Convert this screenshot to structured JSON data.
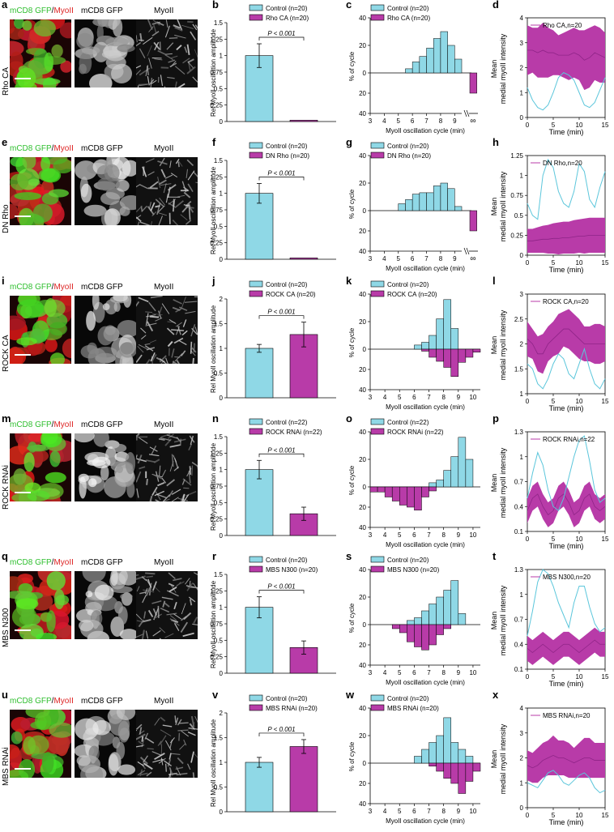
{
  "image_titles": {
    "merge_green": "mCD8 GFP",
    "merge_sep": "/",
    "merge_red": "MyoII",
    "gfp": "mCD8 GFP",
    "myo": "MyoII"
  },
  "colors": {
    "control": "#8FD8E6",
    "control_line": "#5BC6DB",
    "treated": "#B83BA8",
    "treated_line": "#8E2487"
  },
  "axis_labels": {
    "bar_y": "Rel MyoII oscillation amplitude",
    "hist_y": "% of cycle",
    "hist_x": "MyoII oscillation cycle (min)",
    "trace_y1": "Mean",
    "trace_y2": "medial myoII intensity",
    "trace_x": "Time (min)",
    "pval": "P < 0.001",
    "inf_symbol": "∞"
  },
  "rows": [
    {
      "row_label": "Rho CA",
      "letters": [
        "a",
        "b",
        "c",
        "d"
      ],
      "treat": "Rho CA",
      "n_ctrl": "20",
      "n_treat": "20",
      "legend_ctrl": "Control (n=20)",
      "legend_treat": "Rho CA (n=20)",
      "trace_legend": "Rho CA,n=20"
    },
    {
      "row_label": "DN Rho",
      "letters": [
        "e",
        "f",
        "g",
        "h"
      ],
      "treat": "DN Rho",
      "n_ctrl": "20",
      "n_treat": "20",
      "legend_ctrl": "Control (n=20)",
      "legend_treat": "DN Rho (n=20)",
      "trace_legend": "DN Rho,n=20"
    },
    {
      "row_label": "ROCK CA",
      "letters": [
        "i",
        "j",
        "k",
        "l"
      ],
      "treat": "ROCK CA",
      "n_ctrl": "20",
      "n_treat": "20",
      "legend_ctrl": "Control (n=20)",
      "legend_treat": "ROCK CA (n=20)",
      "trace_legend": "ROCK CA,n=20"
    },
    {
      "row_label": "ROCK RNAi",
      "letters": [
        "m",
        "n",
        "o",
        "p"
      ],
      "treat": "ROCK RNAi",
      "n_ctrl": "22",
      "n_treat": "22",
      "legend_ctrl": "Control (n=22)",
      "legend_treat": "ROCK RNAi (n=22)",
      "trace_legend": "ROCK RNAi,n=22"
    },
    {
      "row_label": "MBS N300",
      "letters": [
        "q",
        "r",
        "s",
        "t"
      ],
      "treat": "MBS N300",
      "n_ctrl": "20",
      "n_treat": "20",
      "legend_ctrl": "Control (n=20)",
      "legend_treat": "MBS N300 (n=20)",
      "trace_legend": "MBS N300,n=20"
    },
    {
      "row_label": "MBS RNAi",
      "letters": [
        "u",
        "v",
        "w",
        "x"
      ],
      "treat": "MBS RNAi",
      "n_ctrl": "20",
      "n_treat": "20",
      "legend_ctrl": "Control (n=20)",
      "legend_treat": "MBS RNAi (n=20)",
      "trace_legend": "MBS RNAi,n=20"
    }
  ],
  "chart_data": [
    {
      "type": "bar",
      "panel": "b",
      "categories": [
        "Control",
        "Rho CA"
      ],
      "values": [
        1.0,
        0.02
      ],
      "errors": [
        0.18,
        0.0
      ],
      "ylim": [
        0,
        1.5
      ],
      "yticks": [
        0,
        0.25,
        0.5,
        0.75,
        1,
        1.25,
        1.5
      ],
      "ylabel": "Rel MyoII oscillation amplitude",
      "annotation": "P < 0.001"
    },
    {
      "type": "bar",
      "panel": "f",
      "categories": [
        "Control",
        "DN Rho"
      ],
      "values": [
        1.0,
        0.02
      ],
      "errors": [
        0.15,
        0.0
      ],
      "ylim": [
        0,
        1.5
      ],
      "yticks": [
        0,
        0.25,
        0.5,
        0.75,
        1,
        1.25,
        1.5
      ],
      "ylabel": "Rel MyoII oscillation amplitude",
      "annotation": "P < 0.001"
    },
    {
      "type": "bar",
      "panel": "j",
      "categories": [
        "Control",
        "ROCK CA"
      ],
      "values": [
        1.0,
        1.28
      ],
      "errors": [
        0.08,
        0.25
      ],
      "ylim": [
        0,
        2
      ],
      "yticks": [
        0,
        0.5,
        1,
        1.5,
        2
      ],
      "ylabel": "Rel MyoII oscillation amplitude",
      "annotation": "P < 0.001"
    },
    {
      "type": "bar",
      "panel": "n",
      "categories": [
        "Control",
        "ROCK RNAi"
      ],
      "values": [
        1.0,
        0.33
      ],
      "errors": [
        0.14,
        0.1
      ],
      "ylim": [
        0,
        1.5
      ],
      "yticks": [
        0,
        0.25,
        0.5,
        0.75,
        1,
        1.25,
        1.5
      ],
      "ylabel": "Rel MyoII oscillation amplitude",
      "annotation": "P < 0.001"
    },
    {
      "type": "bar",
      "panel": "r",
      "categories": [
        "Control",
        "MBS N300"
      ],
      "values": [
        1.0,
        0.39
      ],
      "errors": [
        0.16,
        0.1
      ],
      "ylim": [
        0,
        1.5
      ],
      "yticks": [
        0,
        0.25,
        0.5,
        0.75,
        1,
        1.25,
        1.5
      ],
      "ylabel": "Rel MyoII oscillation amplitude",
      "annotation": "P < 0.001"
    },
    {
      "type": "bar",
      "panel": "v",
      "categories": [
        "Control",
        "MBS RNAi"
      ],
      "values": [
        1.0,
        1.32
      ],
      "errors": [
        0.1,
        0.14
      ],
      "ylim": [
        0,
        2
      ],
      "yticks": [
        0,
        0.5,
        1,
        1.5,
        2
      ],
      "ylabel": "Rel MyoII oscillation amplitude",
      "annotation": "P < 0.001"
    },
    {
      "type": "bar",
      "subtype": "mirrored-histogram",
      "panel": "c",
      "xlim": [
        3,
        9.5
      ],
      "xticks": [
        3,
        4,
        5,
        6,
        7,
        8,
        9
      ],
      "ylim": [
        0,
        40
      ],
      "yticks": [
        40,
        20,
        0,
        20,
        40
      ],
      "bin_width": 0.5,
      "bin_starts": [
        3,
        3.5,
        4,
        4.5,
        5,
        5.5,
        6,
        6.5,
        7,
        7.5,
        8,
        8.5,
        9
      ],
      "control": [
        0,
        0,
        0,
        0,
        0,
        3,
        8,
        12,
        18,
        25,
        30,
        20,
        10
      ],
      "treated": [],
      "treated_infinity": 20,
      "has_infinity": true,
      "xlabel": "MyoII oscillation cycle (min)",
      "ylabel": "% of cycle"
    },
    {
      "type": "bar",
      "subtype": "mirrored-histogram",
      "panel": "g",
      "xlim": [
        3,
        9.5
      ],
      "xticks": [
        3,
        4,
        5,
        6,
        7,
        8,
        9
      ],
      "ylim": [
        0,
        40
      ],
      "yticks": [
        40,
        20,
        0,
        20,
        40
      ],
      "bin_width": 0.5,
      "bin_starts": [
        3,
        3.5,
        4,
        4.5,
        5,
        5.5,
        6,
        6.5,
        7,
        7.5,
        8,
        8.5,
        9
      ],
      "control": [
        0,
        0,
        0,
        0,
        5,
        8,
        12,
        13,
        13,
        18,
        20,
        16,
        3
      ],
      "treated": [],
      "treated_infinity": 20,
      "has_infinity": true,
      "xlabel": "MyoII oscillation cycle (min)",
      "ylabel": "% of cycle"
    },
    {
      "type": "bar",
      "subtype": "mirrored-histogram",
      "panel": "k",
      "xlim": [
        3,
        10.5
      ],
      "xticks": [
        3,
        4,
        5,
        6,
        7,
        8,
        9,
        10
      ],
      "ylim": [
        0,
        40
      ],
      "yticks": [
        40,
        20,
        0,
        20,
        40
      ],
      "bin_width": 0.5,
      "bin_starts": [
        3,
        3.5,
        4,
        4.5,
        5,
        5.5,
        6,
        6.5,
        7,
        7.5,
        8,
        8.5,
        9,
        9.5,
        10
      ],
      "control": [
        0,
        0,
        0,
        0,
        0,
        0,
        3,
        5,
        10,
        22,
        36,
        15,
        0,
        0,
        0
      ],
      "treated": [
        0,
        0,
        0,
        0,
        0,
        0,
        0,
        2,
        8,
        12,
        18,
        27,
        13,
        8,
        3
      ],
      "has_infinity": false,
      "xlabel": "MyoII oscillation cycle (min)",
      "ylabel": "% of cycle"
    },
    {
      "type": "bar",
      "subtype": "mirrored-histogram",
      "panel": "o",
      "xlim": [
        3,
        10.5
      ],
      "xticks": [
        3,
        4,
        5,
        6,
        7,
        8,
        9,
        10
      ],
      "ylim": [
        0,
        40
      ],
      "yticks": [
        40,
        20,
        0,
        20,
        40
      ],
      "bin_width": 0.5,
      "bin_starts": [
        3,
        3.5,
        4,
        4.5,
        5,
        5.5,
        6,
        6.5,
        7,
        7.5,
        8,
        8.5,
        9,
        9.5,
        10
      ],
      "control": [
        0,
        0,
        0,
        0,
        0,
        0,
        0,
        0,
        3,
        5,
        12,
        22,
        36,
        20,
        0
      ],
      "treated": [
        5,
        5,
        10,
        14,
        18,
        20,
        23,
        10,
        4,
        0,
        0,
        0,
        0,
        0,
        0
      ],
      "has_infinity": false,
      "xlabel": "MyoII oscillation cycle (min)",
      "ylabel": "% of cycle"
    },
    {
      "type": "bar",
      "subtype": "mirrored-histogram",
      "panel": "s",
      "xlim": [
        3,
        10.5
      ],
      "xticks": [
        3,
        4,
        5,
        6,
        7,
        8,
        9,
        10
      ],
      "ylim": [
        0,
        40
      ],
      "yticks": [
        40,
        20,
        0,
        20,
        40
      ],
      "bin_width": 0.5,
      "bin_starts": [
        3,
        3.5,
        4,
        4.5,
        5,
        5.5,
        6,
        6.5,
        7,
        7.5,
        8,
        8.5,
        9,
        9.5,
        10
      ],
      "control": [
        0,
        0,
        0,
        0,
        0,
        3,
        5,
        10,
        15,
        20,
        25,
        32,
        8,
        0,
        0
      ],
      "treated": [
        0,
        0,
        0,
        4,
        8,
        17,
        22,
        25,
        20,
        10,
        4,
        0,
        0,
        0,
        0
      ],
      "has_infinity": false,
      "xlabel": "MyoII oscillation cycle (min)",
      "ylabel": "% of cycle"
    },
    {
      "type": "bar",
      "subtype": "mirrored-histogram",
      "panel": "w",
      "xlim": [
        3,
        10.5
      ],
      "xticks": [
        3,
        4,
        5,
        6,
        7,
        8,
        9,
        10
      ],
      "ylim": [
        0,
        40
      ],
      "yticks": [
        40,
        20,
        0,
        20,
        40
      ],
      "bin_width": 0.5,
      "bin_starts": [
        3,
        3.5,
        4,
        4.5,
        5,
        5.5,
        6,
        6.5,
        7,
        7.5,
        8,
        8.5,
        9,
        9.5,
        10
      ],
      "control": [
        0,
        0,
        0,
        0,
        0,
        0,
        5,
        10,
        15,
        20,
        33,
        15,
        10,
        5,
        0
      ],
      "treated": [
        0,
        0,
        0,
        0,
        0,
        0,
        0,
        0,
        3,
        8,
        15,
        20,
        30,
        18,
        8
      ],
      "has_infinity": false,
      "xlabel": "MyoII oscillation cycle (min)",
      "ylabel": "% of cycle"
    },
    {
      "type": "area",
      "panel": "d",
      "xlim": [
        0,
        15
      ],
      "xticks": [
        0,
        5,
        10,
        15
      ],
      "ylim": [
        0,
        4
      ],
      "yticks": [
        0,
        1,
        2,
        3,
        4
      ],
      "t": [
        0,
        1,
        2,
        3,
        4,
        5,
        6,
        7,
        8,
        9,
        10,
        11,
        12,
        13,
        14,
        15
      ],
      "treated_mean": [
        2.7,
        2.7,
        2.6,
        2.7,
        2.6,
        2.6,
        2.5,
        2.5,
        2.5,
        2.6,
        2.5,
        2.3,
        2.4,
        2.6,
        2.5,
        2.4
      ],
      "treated_sd": [
        1.0,
        0.9,
        1.0,
        1.1,
        1.0,
        0.9,
        0.8,
        0.9,
        1.0,
        1.0,
        1.0,
        1.2,
        1.2,
        1.1,
        1.1,
        1.0
      ],
      "control_trace": [
        1.2,
        0.7,
        0.4,
        0.3,
        0.5,
        1.0,
        1.6,
        1.8,
        1.7,
        1.5,
        1.0,
        0.5,
        0.4,
        0.6,
        1.1,
        1.6
      ],
      "legend": "Rho CA,n=20"
    },
    {
      "type": "area",
      "panel": "h",
      "xlim": [
        0,
        15
      ],
      "xticks": [
        0,
        5,
        10,
        15
      ],
      "ylim": [
        0,
        1.25
      ],
      "yticks": [
        0,
        0.25,
        0.5,
        0.75,
        1,
        1.25
      ],
      "t": [
        0,
        1,
        2,
        3,
        4,
        5,
        6,
        7,
        8,
        9,
        10,
        11,
        12,
        13,
        14,
        15
      ],
      "treated_mean": [
        0.18,
        0.18,
        0.19,
        0.2,
        0.2,
        0.21,
        0.21,
        0.22,
        0.22,
        0.23,
        0.24,
        0.24,
        0.25,
        0.25,
        0.25,
        0.25
      ],
      "treated_sd": [
        0.15,
        0.15,
        0.16,
        0.17,
        0.18,
        0.19,
        0.2,
        0.2,
        0.2,
        0.21,
        0.21,
        0.22,
        0.22,
        0.22,
        0.22,
        0.22
      ],
      "control_trace": [
        0.65,
        0.5,
        0.45,
        1.0,
        1.2,
        1.1,
        0.8,
        0.65,
        0.6,
        0.8,
        1.15,
        1.05,
        0.7,
        0.6,
        0.85,
        1.05
      ],
      "legend": "DN Rho,n=20"
    },
    {
      "type": "area",
      "panel": "l",
      "xlim": [
        0,
        15
      ],
      "xticks": [
        0,
        5,
        10,
        15
      ],
      "ylim": [
        1,
        3
      ],
      "yticks": [
        1,
        1.5,
        2,
        2.5,
        3
      ],
      "t": [
        0,
        1,
        2,
        3,
        4,
        5,
        6,
        7,
        8,
        9,
        10,
        11,
        12,
        13,
        14,
        15
      ],
      "treated_mean": [
        2.1,
        2.0,
        1.8,
        1.8,
        2.0,
        2.1,
        2.2,
        2.3,
        2.3,
        2.2,
        2.1,
        2.0,
        2.0,
        2.0,
        2.0,
        2.0
      ],
      "treated_sd": [
        0.35,
        0.3,
        0.35,
        0.4,
        0.35,
        0.35,
        0.4,
        0.35,
        0.4,
        0.4,
        0.4,
        0.35,
        0.35,
        0.4,
        0.4,
        0.35
      ],
      "control_trace": [
        1.6,
        1.5,
        1.2,
        1.1,
        1.3,
        1.6,
        1.8,
        1.7,
        1.4,
        1.3,
        1.6,
        1.9,
        1.5,
        1.2,
        1.1,
        1.3
      ],
      "legend": "ROCK CA,n=20"
    },
    {
      "type": "area",
      "panel": "p",
      "xlim": [
        0,
        15
      ],
      "xticks": [
        0,
        5,
        10,
        15
      ],
      "ylim": [
        0.1,
        1.3
      ],
      "yticks": [
        0.1,
        0.4,
        0.7,
        1,
        1.3
      ],
      "t": [
        0,
        1,
        2,
        3,
        4,
        5,
        6,
        7,
        8,
        9,
        10,
        11,
        12,
        13,
        14,
        15
      ],
      "treated_mean": [
        0.35,
        0.5,
        0.55,
        0.4,
        0.3,
        0.35,
        0.5,
        0.55,
        0.45,
        0.3,
        0.35,
        0.5,
        0.55,
        0.4,
        0.35,
        0.4
      ],
      "treated_sd": [
        0.15,
        0.15,
        0.15,
        0.15,
        0.15,
        0.15,
        0.15,
        0.15,
        0.15,
        0.15,
        0.15,
        0.15,
        0.15,
        0.15,
        0.15,
        0.15
      ],
      "control_trace": [
        0.5,
        0.8,
        1.05,
        0.9,
        0.6,
        0.4,
        0.35,
        0.5,
        0.75,
        1.0,
        1.2,
        1.25,
        0.95,
        0.6,
        0.45,
        0.5
      ],
      "legend": "ROCK RNAi,n=22"
    },
    {
      "type": "area",
      "panel": "t",
      "xlim": [
        0,
        15
      ],
      "xticks": [
        0,
        5,
        10,
        15
      ],
      "ylim": [
        0.1,
        1.3
      ],
      "yticks": [
        0.1,
        0.4,
        0.7,
        1,
        1.3
      ],
      "t": [
        0,
        1,
        2,
        3,
        4,
        5,
        6,
        7,
        8,
        9,
        10,
        11,
        12,
        13,
        14,
        15
      ],
      "treated_mean": [
        0.35,
        0.3,
        0.35,
        0.4,
        0.35,
        0.3,
        0.35,
        0.4,
        0.4,
        0.35,
        0.3,
        0.35,
        0.4,
        0.45,
        0.4,
        0.4
      ],
      "treated_sd": [
        0.15,
        0.15,
        0.15,
        0.15,
        0.15,
        0.15,
        0.15,
        0.15,
        0.15,
        0.15,
        0.15,
        0.15,
        0.15,
        0.15,
        0.15,
        0.15
      ],
      "control_trace": [
        0.5,
        0.8,
        1.15,
        1.3,
        1.25,
        1.1,
        0.9,
        0.75,
        0.6,
        0.9,
        1.1,
        1.1,
        0.85,
        0.65,
        0.55,
        0.6
      ],
      "legend": "MBS N300,n=20"
    },
    {
      "type": "area",
      "panel": "x",
      "xlim": [
        0,
        15
      ],
      "xticks": [
        0,
        5,
        10,
        15
      ],
      "ylim": [
        0,
        4
      ],
      "yticks": [
        0,
        1,
        2,
        3,
        4
      ],
      "t": [
        0,
        1,
        2,
        3,
        4,
        5,
        6,
        7,
        8,
        9,
        10,
        11,
        12,
        13,
        14,
        15
      ],
      "treated_mean": [
        1.7,
        1.6,
        1.7,
        1.9,
        2.0,
        2.1,
        2.0,
        2.0,
        1.9,
        1.8,
        1.9,
        2.0,
        2.0,
        1.9,
        1.9,
        1.9
      ],
      "treated_sd": [
        0.6,
        0.6,
        0.7,
        0.7,
        0.7,
        0.8,
        0.7,
        0.7,
        0.7,
        0.6,
        0.7,
        0.8,
        0.8,
        0.7,
        0.7,
        0.7
      ],
      "control_trace": [
        1.0,
        0.9,
        0.8,
        1.1,
        1.4,
        1.5,
        1.3,
        1.0,
        0.9,
        1.1,
        1.3,
        1.4,
        1.2,
        0.8,
        0.6,
        0.7
      ],
      "legend": "MBS RNAi,n=20"
    }
  ]
}
